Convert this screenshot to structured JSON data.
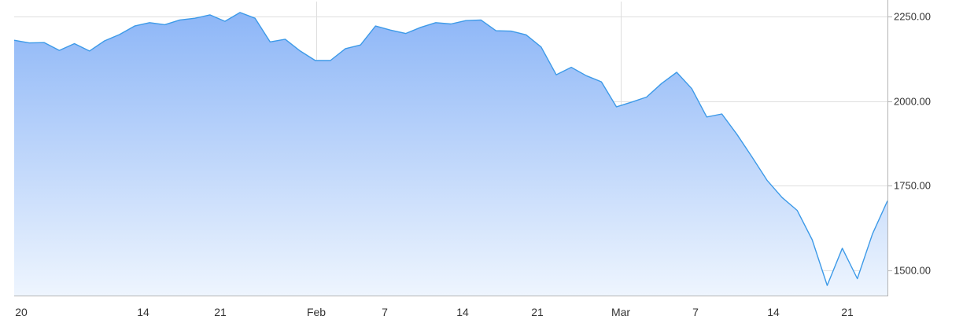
{
  "chart_data": {
    "type": "area",
    "title": "",
    "xlabel": "",
    "ylabel": "",
    "ylim": [
      1425,
      2285
    ],
    "grid": true,
    "legend": "none",
    "colors": {
      "line": "#3d9ae8",
      "fill_top": "#8db6f7",
      "fill_bottom": "#eef5fe",
      "grid": "#dedede",
      "axis": "#b4b4b4"
    },
    "x_tick_labels": [
      "20",
      "14",
      "21",
      "Feb",
      "7",
      "14",
      "21",
      "Mar",
      "7",
      "14",
      "21"
    ],
    "y_ticks": [
      {
        "value": 2250,
        "label": "2250.00"
      },
      {
        "value": 2000,
        "label": "2000.00"
      },
      {
        "value": 1750,
        "label": "1750.00"
      },
      {
        "value": 1500,
        "label": "1500.00"
      }
    ],
    "series": [
      {
        "values": [
          2180,
          2172,
          2173,
          2150,
          2170,
          2148,
          2178,
          2197,
          2222,
          2232,
          2226,
          2240,
          2245,
          2255,
          2236,
          2262,
          2245,
          2175,
          2183,
          2148,
          2120,
          2120,
          2155,
          2166,
          2222,
          2210,
          2200,
          2218,
          2232,
          2228,
          2238,
          2240,
          2208,
          2207,
          2196,
          2160,
          2078,
          2100,
          2075,
          2057,
          1983,
          1997,
          2012,
          2052,
          2085,
          2037,
          1953,
          1962,
          1902,
          1835,
          1766,
          1715,
          1677,
          1590,
          1455,
          1565,
          1475,
          1607,
          1705
        ]
      }
    ]
  }
}
